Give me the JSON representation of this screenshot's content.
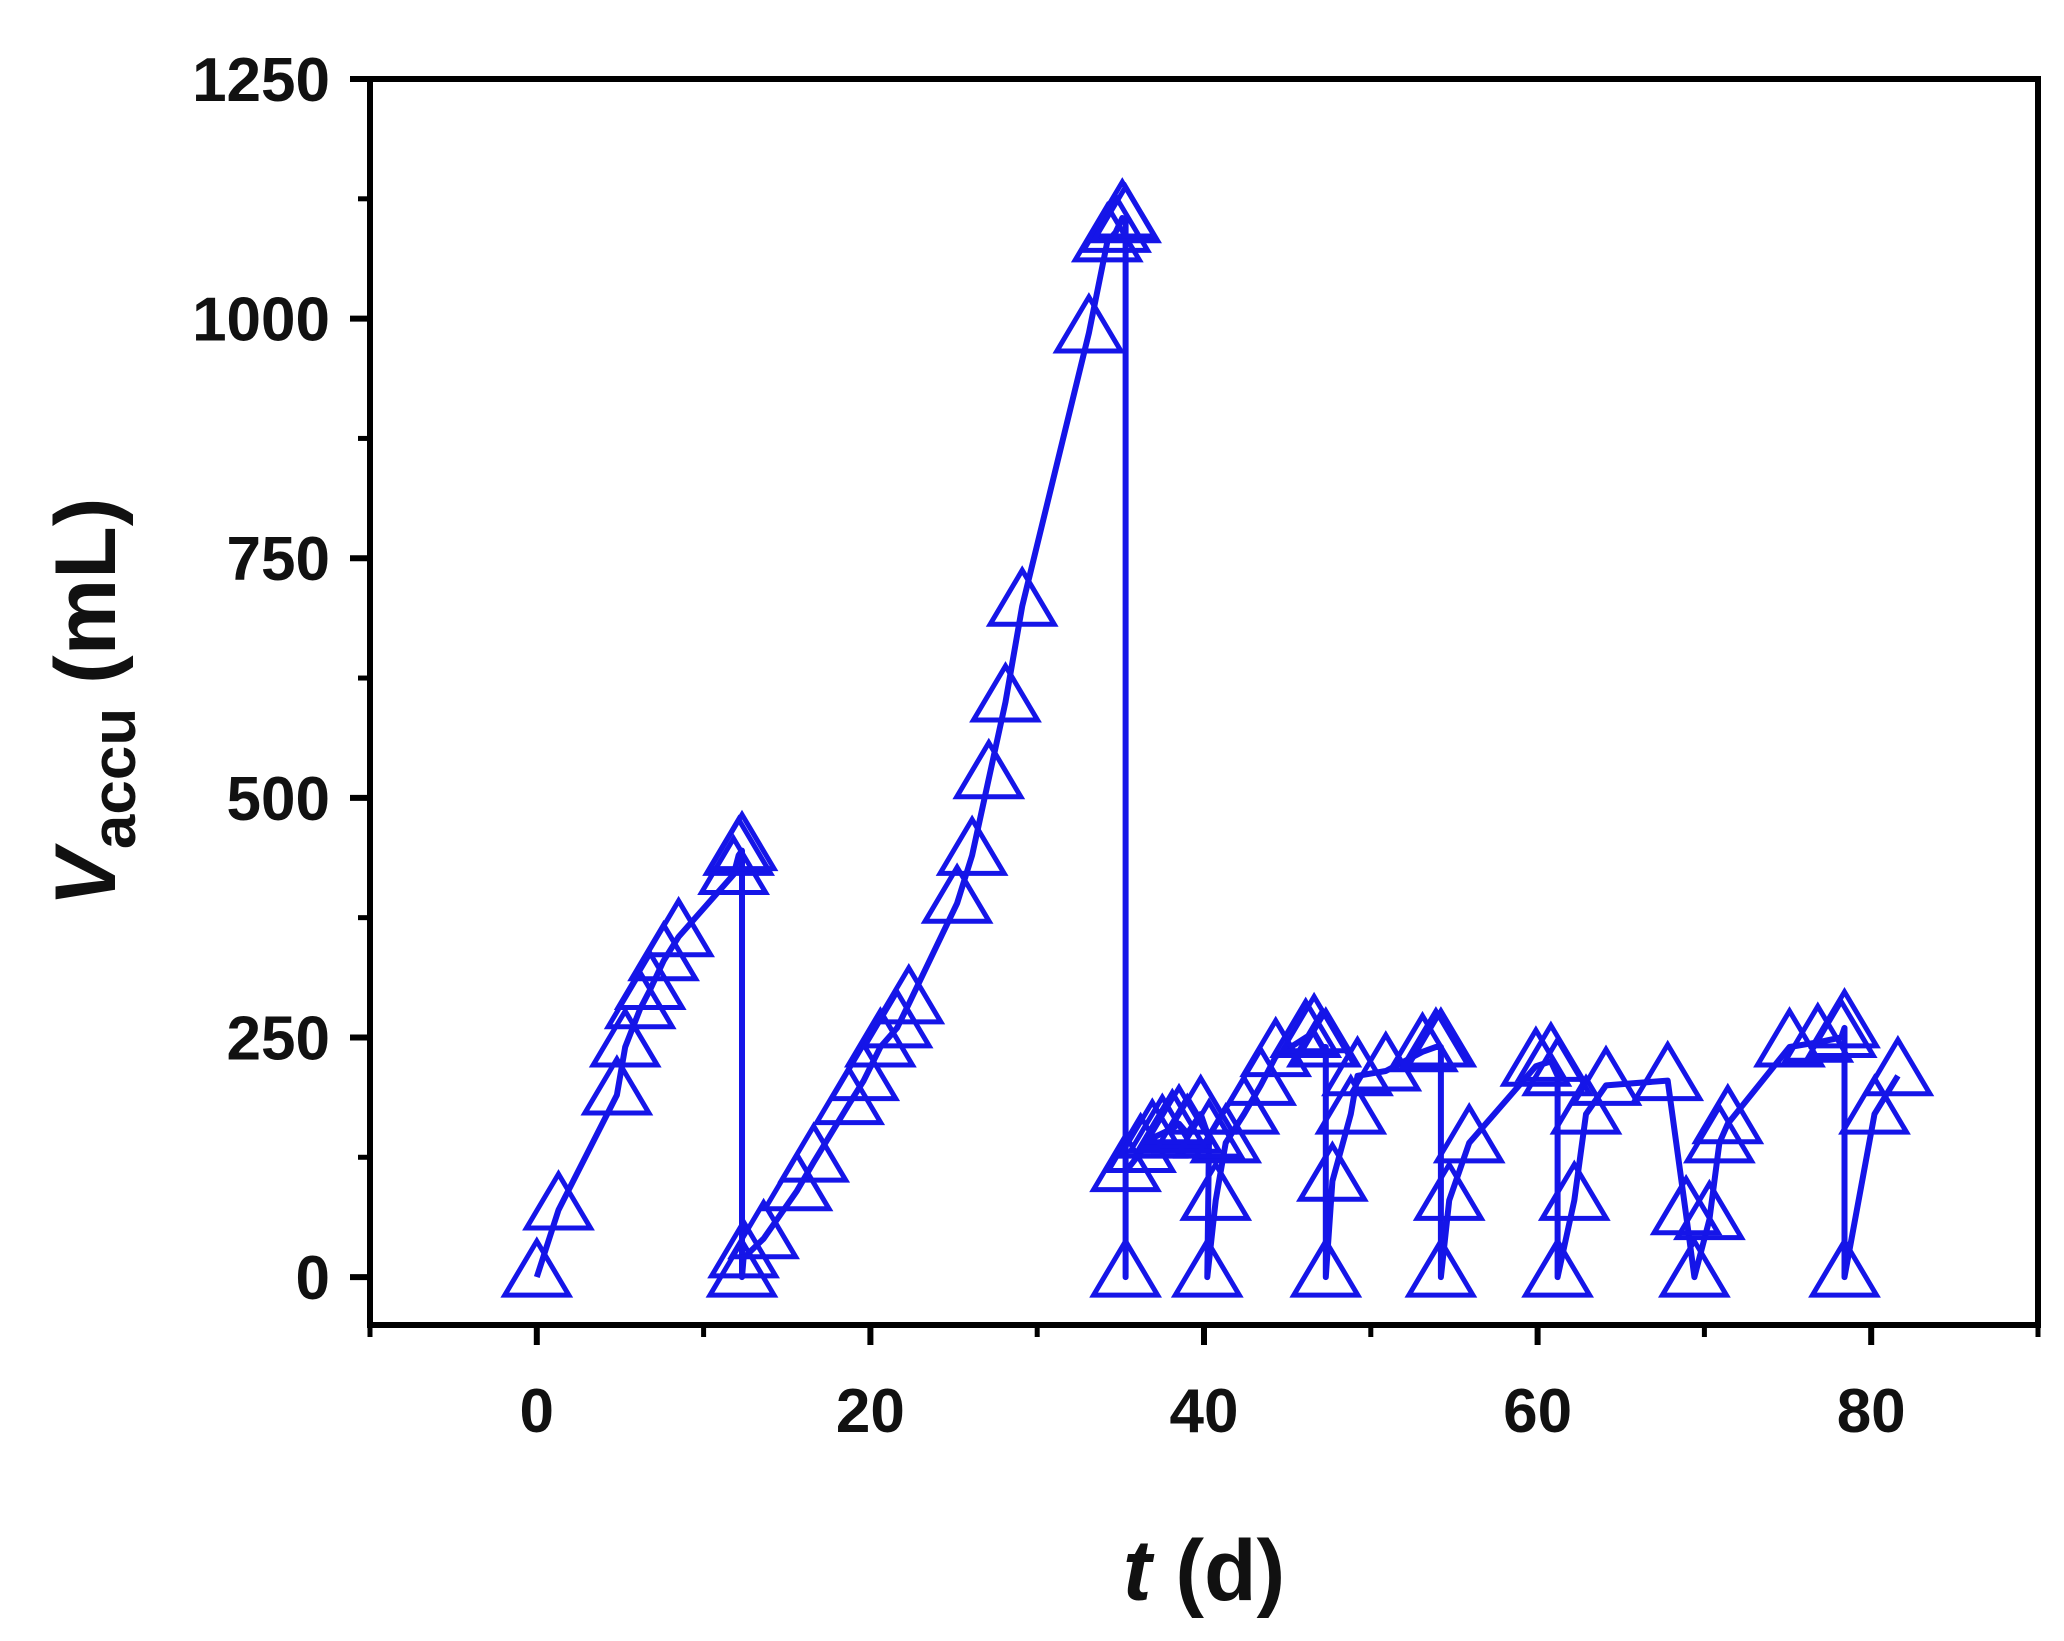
{
  "chart_data": {
    "type": "line",
    "x_axis": {
      "label_var": "t",
      "label_unit": " (d)",
      "range": [
        -10,
        90
      ],
      "ticks": [
        0,
        20,
        40,
        60,
        80
      ],
      "tick_labels": [
        "0",
        "20",
        "40",
        "60",
        "80"
      ],
      "minor_ticks": [
        -10,
        10,
        30,
        50,
        70,
        90
      ]
    },
    "y_axis": {
      "label_var": "V",
      "label_sub": "accu",
      "label_unit": " (mL)",
      "range": [
        -50,
        1250
      ],
      "ticks": [
        0,
        250,
        500,
        750,
        1000,
        1250
      ],
      "tick_labels": [
        "0",
        "250",
        "500",
        "750",
        "1000",
        "1250"
      ],
      "minor_ticks": [
        125,
        375,
        625,
        875,
        1125
      ]
    },
    "grid": false,
    "legend": "none",
    "series": [
      {
        "color": "#1515e8",
        "marker": "open-triangle",
        "points": [
          [
            0,
            0
          ],
          [
            1.3,
            70
          ],
          [
            4.8,
            190
          ],
          [
            5.3,
            240
          ],
          [
            6.2,
            280
          ],
          [
            6.8,
            300
          ],
          [
            7.6,
            330
          ],
          [
            8.5,
            355
          ],
          [
            11.8,
            420
          ],
          [
            12.1,
            440
          ],
          [
            12.3,
            445
          ],
          [
            12.3,
            0
          ],
          [
            12.4,
            20
          ],
          [
            13.6,
            40
          ],
          [
            15.6,
            90
          ],
          [
            16.6,
            120
          ],
          [
            18.7,
            180
          ],
          [
            19.6,
            205
          ],
          [
            20.6,
            240
          ],
          [
            21.6,
            260
          ],
          [
            22.3,
            285
          ],
          [
            25.2,
            390
          ],
          [
            26.1,
            440
          ],
          [
            27.1,
            520
          ],
          [
            28.1,
            600
          ],
          [
            29.1,
            700
          ],
          [
            33.1,
            985
          ],
          [
            34.2,
            1080
          ],
          [
            34.7,
            1090
          ],
          [
            35.1,
            1105
          ],
          [
            35.3,
            1100
          ],
          [
            35.3,
            0
          ],
          [
            35.3,
            110
          ],
          [
            36.2,
            130
          ],
          [
            36.9,
            145
          ],
          [
            37.5,
            150
          ],
          [
            38.1,
            155
          ],
          [
            38.5,
            160
          ],
          [
            39.0,
            150
          ],
          [
            39.8,
            170
          ],
          [
            40.3,
            145
          ],
          [
            40.2,
            0
          ],
          [
            40.7,
            80
          ],
          [
            41.3,
            140
          ],
          [
            42.4,
            170
          ],
          [
            43.4,
            200
          ],
          [
            44.3,
            230
          ],
          [
            46.1,
            250
          ],
          [
            46.6,
            255
          ],
          [
            47.1,
            240
          ],
          [
            47.3,
            240
          ],
          [
            47.3,
            0
          ],
          [
            47.7,
            100
          ],
          [
            48.8,
            170
          ],
          [
            49.2,
            210
          ],
          [
            50.9,
            215
          ],
          [
            53.1,
            235
          ],
          [
            53.9,
            240
          ],
          [
            54.2,
            240
          ],
          [
            54.2,
            0
          ],
          [
            54.7,
            80
          ],
          [
            55.9,
            140
          ],
          [
            59.9,
            220
          ],
          [
            60.8,
            225
          ],
          [
            61.2,
            210
          ],
          [
            61.2,
            0
          ],
          [
            62.2,
            80
          ],
          [
            62.9,
            170
          ],
          [
            64.1,
            200
          ],
          [
            67.8,
            205
          ],
          [
            68.9,
            65
          ],
          [
            69.4,
            0
          ],
          [
            70.3,
            60
          ],
          [
            70.9,
            140
          ],
          [
            71.4,
            160
          ],
          [
            75.1,
            240
          ],
          [
            76.8,
            245
          ],
          [
            78.2,
            250
          ],
          [
            78.4,
            260
          ],
          [
            78.4,
            0
          ],
          [
            80.2,
            170
          ],
          [
            81.6,
            210
          ]
        ]
      }
    ]
  }
}
